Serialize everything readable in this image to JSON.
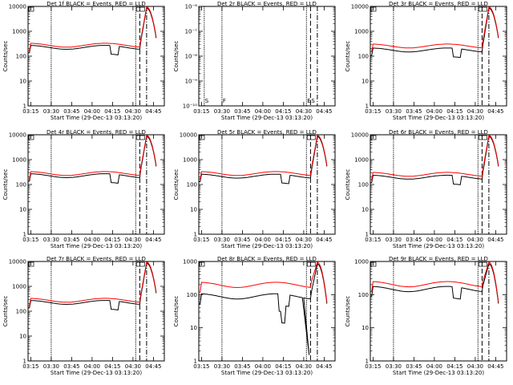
{
  "chart_data": [
    {
      "type": "line",
      "title": "Det 1f  BLACK = Events, RED = LLD",
      "xlabel": "Start Time (29-Dec-13 03:13:20)",
      "ylabel": "Counts/sec",
      "yscale": "log",
      "ylim": [
        1,
        10000
      ],
      "has_data": true,
      "shape": 0,
      "markers": [
        {
          "x": "03:30",
          "style": "dotted",
          "label": ""
        },
        {
          "x": "04:32",
          "style": "dotted",
          "label": ""
        },
        {
          "x": "04:35",
          "style": "dashed",
          "label": ""
        },
        {
          "x": "04:40",
          "style": "dashdot",
          "label": ""
        }
      ],
      "series": [
        {
          "name": "Events",
          "color": "#000000",
          "base": 230
        },
        {
          "name": "LLD",
          "color": "#ff0000",
          "base": 280
        }
      ]
    },
    {
      "type": "line",
      "title": "Det 2r  BLACK = Events, RED = LLD",
      "xlabel": "Start Time (29-Dec-13 03:13:20)",
      "ylabel": "Counts/sec",
      "yscale": "log",
      "ylim": [
        1e-10,
        1e-06
      ],
      "has_data": false,
      "shape": 0,
      "markers": [
        {
          "x": "03:17",
          "style": "dotted",
          "label": "S"
        },
        {
          "x": "03:30",
          "style": "dotted",
          "label": "F"
        },
        {
          "x": "04:32",
          "style": "dotted",
          "label": "E"
        },
        {
          "x": "04:35",
          "style": "dashed",
          "label": "S"
        },
        {
          "x": "04:40",
          "style": "dashdot",
          "label": ""
        }
      ],
      "series": []
    },
    {
      "type": "line",
      "title": "Det 3r  BLACK = Events, RED = LLD",
      "xlabel": "Start Time (29-Dec-13 03:13:20)",
      "ylabel": "Counts/sec",
      "yscale": "log",
      "ylim": [
        1,
        10000
      ],
      "has_data": true,
      "shape": 0,
      "markers": [
        {
          "x": "03:30",
          "style": "dotted",
          "label": ""
        },
        {
          "x": "04:32",
          "style": "dotted",
          "label": ""
        },
        {
          "x": "04:35",
          "style": "dashed",
          "label": ""
        },
        {
          "x": "04:40",
          "style": "dashdot",
          "label": ""
        }
      ],
      "series": [
        {
          "name": "Events",
          "color": "#000000",
          "base": 180
        },
        {
          "name": "LLD",
          "color": "#ff0000",
          "base": 260
        }
      ]
    },
    {
      "type": "line",
      "title": "Det 4r  BLACK = Events, RED = LLD",
      "xlabel": "Start Time (29-Dec-13 03:13:20)",
      "ylabel": "Counts/sec",
      "yscale": "log",
      "ylim": [
        1,
        10000
      ],
      "has_data": true,
      "shape": 0,
      "markers": [
        {
          "x": "03:30",
          "style": "dotted",
          "label": ""
        },
        {
          "x": "04:32",
          "style": "dotted",
          "label": ""
        },
        {
          "x": "04:35",
          "style": "dashed",
          "label": ""
        },
        {
          "x": "04:40",
          "style": "dashdot",
          "label": ""
        }
      ],
      "series": [
        {
          "name": "Events",
          "color": "#000000",
          "base": 230
        },
        {
          "name": "LLD",
          "color": "#ff0000",
          "base": 280
        }
      ]
    },
    {
      "type": "line",
      "title": "Det 5r  BLACK = Events, RED = LLD",
      "xlabel": "Start Time (29-Dec-13 03:13:20)",
      "ylabel": "Counts/sec",
      "yscale": "log",
      "ylim": [
        1,
        10000
      ],
      "has_data": true,
      "shape": 0,
      "markers": [
        {
          "x": "03:30",
          "style": "dotted",
          "label": ""
        },
        {
          "x": "04:32",
          "style": "dotted",
          "label": ""
        },
        {
          "x": "04:35",
          "style": "dashed",
          "label": ""
        },
        {
          "x": "04:40",
          "style": "dashdot",
          "label": ""
        }
      ],
      "series": [
        {
          "name": "Events",
          "color": "#000000",
          "base": 220
        },
        {
          "name": "LLD",
          "color": "#ff0000",
          "base": 280
        }
      ]
    },
    {
      "type": "line",
      "title": "Det 6r  BLACK = Events, RED = LLD",
      "xlabel": "Start Time (29-Dec-13 03:13:20)",
      "ylabel": "Counts/sec",
      "yscale": "log",
      "ylim": [
        1,
        10000
      ],
      "has_data": true,
      "shape": 0,
      "markers": [
        {
          "x": "03:30",
          "style": "dotted",
          "label": ""
        },
        {
          "x": "04:32",
          "style": "dotted",
          "label": ""
        },
        {
          "x": "04:35",
          "style": "dashed",
          "label": ""
        },
        {
          "x": "04:40",
          "style": "dashdot",
          "label": ""
        }
      ],
      "series": [
        {
          "name": "Events",
          "color": "#000000",
          "base": 200
        },
        {
          "name": "LLD",
          "color": "#ff0000",
          "base": 260
        }
      ]
    },
    {
      "type": "line",
      "title": "Det 7r  BLACK = Events, RED = LLD",
      "xlabel": "Start Time (29-Dec-13 03:13:20)",
      "ylabel": "Counts/sec",
      "yscale": "log",
      "ylim": [
        1,
        10000
      ],
      "has_data": true,
      "shape": 0,
      "markers": [
        {
          "x": "03:30",
          "style": "dotted",
          "label": ""
        },
        {
          "x": "04:32",
          "style": "dotted",
          "label": ""
        },
        {
          "x": "04:35",
          "style": "dashed",
          "label": ""
        },
        {
          "x": "04:40",
          "style": "dashdot",
          "label": ""
        }
      ],
      "series": [
        {
          "name": "Events",
          "color": "#000000",
          "base": 230
        },
        {
          "name": "LLD",
          "color": "#ff0000",
          "base": 280
        }
      ]
    },
    {
      "type": "line",
      "title": "Det 8r  BLACK = Events, RED = LLD",
      "xlabel": "Start Time (29-Dec-13 03:13:20)",
      "ylabel": "Counts/sec",
      "yscale": "log",
      "ylim": [
        1,
        1000
      ],
      "has_data": true,
      "shape": 1,
      "markers": [
        {
          "x": "03:30",
          "style": "dotted",
          "label": ""
        },
        {
          "x": "04:32",
          "style": "dotted",
          "label": ""
        },
        {
          "x": "04:35",
          "style": "dashed",
          "label": ""
        },
        {
          "x": "04:40",
          "style": "dashdot",
          "label": ""
        }
      ],
      "series": [
        {
          "name": "Events",
          "color": "#000000",
          "base": 90
        },
        {
          "name": "LLD",
          "color": "#ff0000",
          "base": 200
        }
      ]
    },
    {
      "type": "line",
      "title": "Det 9r  BLACK = Events, RED = LLD",
      "xlabel": "Start Time (29-Dec-13 03:13:20)",
      "ylabel": "Counts/sec",
      "yscale": "log",
      "ylim": [
        1,
        1000
      ],
      "has_data": true,
      "shape": 0,
      "markers": [
        {
          "x": "03:30",
          "style": "dotted",
          "label": ""
        },
        {
          "x": "04:32",
          "style": "dotted",
          "label": ""
        },
        {
          "x": "04:35",
          "style": "dashed",
          "label": ""
        },
        {
          "x": "04:40",
          "style": "dashdot",
          "label": ""
        }
      ],
      "series": [
        {
          "name": "Events",
          "color": "#000000",
          "base": 150
        },
        {
          "name": "LLD",
          "color": "#ff0000",
          "base": 210
        }
      ]
    }
  ],
  "x_ticks": [
    "03:15",
    "03:30",
    "03:45",
    "04:00",
    "04:15",
    "04:30",
    "04:45"
  ]
}
